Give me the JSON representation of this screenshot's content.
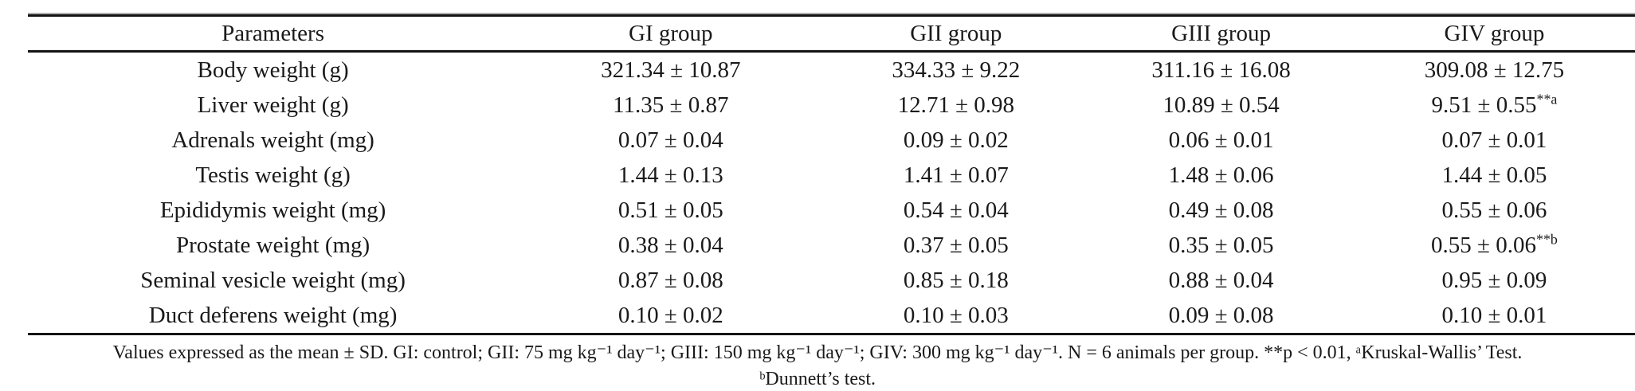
{
  "table": {
    "columns": [
      "Parameters",
      "GI group",
      "GII group",
      "GIII group",
      "GIV group"
    ],
    "rows": [
      {
        "parameter": "Body weight (g)",
        "values": [
          {
            "v": "321.34 ± 10.87"
          },
          {
            "v": "334.33 ± 9.22"
          },
          {
            "v": "311.16 ± 16.08"
          },
          {
            "v": "309.08 ± 12.75"
          }
        ]
      },
      {
        "parameter": "Liver weight (g)",
        "values": [
          {
            "v": "11.35 ± 0.87"
          },
          {
            "v": "12.71 ± 0.98"
          },
          {
            "v": "10.89 ± 0.54"
          },
          {
            "v": "9.51 ± 0.55",
            "sup": "**a"
          }
        ]
      },
      {
        "parameter": "Adrenals weight (mg)",
        "values": [
          {
            "v": "0.07 ± 0.04"
          },
          {
            "v": "0.09 ± 0.02"
          },
          {
            "v": "0.06 ± 0.01"
          },
          {
            "v": "0.07 ± 0.01"
          }
        ]
      },
      {
        "parameter": "Testis weight (g)",
        "values": [
          {
            "v": "1.44 ± 0.13"
          },
          {
            "v": "1.41 ± 0.07"
          },
          {
            "v": "1.48 ± 0.06"
          },
          {
            "v": "1.44 ± 0.05"
          }
        ]
      },
      {
        "parameter": "Epididymis weight (mg)",
        "values": [
          {
            "v": "0.51 ± 0.05"
          },
          {
            "v": "0.54 ± 0.04"
          },
          {
            "v": "0.49 ± 0.08"
          },
          {
            "v": "0.55 ± 0.06"
          }
        ]
      },
      {
        "parameter": "Prostate weight (mg)",
        "values": [
          {
            "v": "0.38 ± 0.04"
          },
          {
            "v": "0.37 ± 0.05"
          },
          {
            "v": "0.35 ± 0.05"
          },
          {
            "v": "0.55 ± 0.06",
            "sup": "**b"
          }
        ]
      },
      {
        "parameter": "Seminal vesicle weight (mg)",
        "values": [
          {
            "v": "0.87 ± 0.08"
          },
          {
            "v": "0.85 ± 0.18"
          },
          {
            "v": "0.88 ± 0.04"
          },
          {
            "v": "0.95 ± 0.09"
          }
        ]
      },
      {
        "parameter": "Duct deferens weight (mg)",
        "values": [
          {
            "v": "0.10 ± 0.02"
          },
          {
            "v": "0.10 ± 0.03"
          },
          {
            "v": "0.09 ± 0.08"
          },
          {
            "v": "0.10 ± 0.01"
          }
        ]
      }
    ],
    "footnote_line1": "Values expressed as the mean ± SD. GI: control; GII: 75 mg kg⁻¹ day⁻¹; GIII: 150 mg kg⁻¹ day⁻¹; GIV: 300 mg kg⁻¹ day⁻¹. N = 6 animals per group. **p < 0.01, ᵃKruskal-Wallis’ Test.",
    "footnote_line2": "ᵇDunnett’s test."
  }
}
